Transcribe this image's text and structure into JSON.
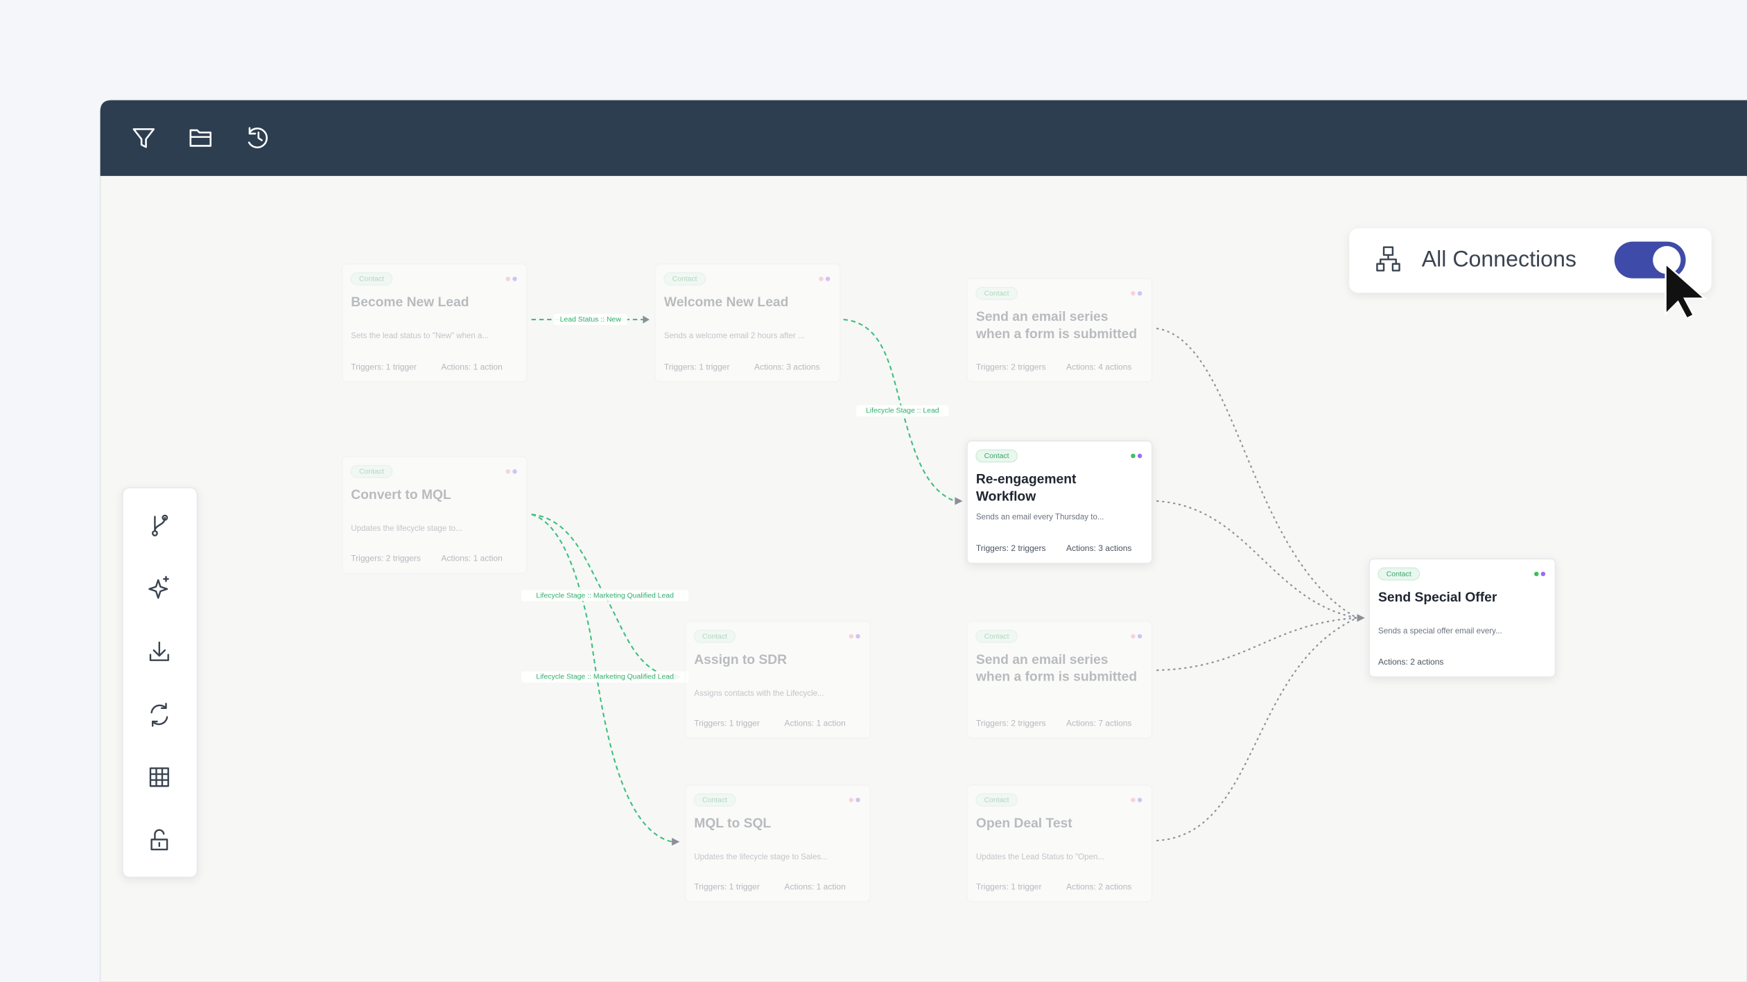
{
  "toggle": {
    "label": "All Connections",
    "enabled": true
  },
  "connections": [
    {
      "label": "Lead Status :: New"
    },
    {
      "label": "Lifecycle Stage :: Lead"
    },
    {
      "label": "Lifecycle Stage :: Marketing Qualified Lead"
    },
    {
      "label": "Lifecycle Stage :: Marketing Qualified Lead"
    }
  ],
  "cards": [
    {
      "tag": "Contact",
      "title_lines": [
        "Become New Lead"
      ],
      "description": "Sets the lead status to \"New\" when a...",
      "triggers": "Triggers: 1 trigger",
      "actions": "Actions: 1 action",
      "faded": true
    },
    {
      "tag": "Contact",
      "title_lines": [
        "Welcome New Lead"
      ],
      "description": "Sends a welcome email 2 hours after ...",
      "triggers": "Triggers: 1 trigger",
      "actions": "Actions: 3 actions",
      "faded": true
    },
    {
      "tag": "Contact",
      "title_lines": [
        "Send an email series",
        "when a form is submitted"
      ],
      "triggers": "Triggers: 2 triggers",
      "actions": "Actions: 4 actions",
      "faded": true
    },
    {
      "tag": "Contact",
      "title_lines": [
        "Convert to MQL"
      ],
      "description": "Updates the lifecycle stage to...",
      "triggers": "Triggers: 2 triggers",
      "actions": "Actions: 1 action",
      "faded": true
    },
    {
      "tag": "Contact",
      "title_lines": [
        "Re-engagement",
        "Workflow"
      ],
      "description": "Sends an email every Thursday to...",
      "triggers": "Triggers: 2 triggers",
      "actions": "Actions: 3 actions",
      "faded": false
    },
    {
      "tag": "Contact",
      "title_lines": [
        "Assign to SDR"
      ],
      "description": "Assigns contacts with the Lifecycle...",
      "triggers": "Triggers: 1 trigger",
      "actions": "Actions: 1 action",
      "faded": true
    },
    {
      "tag": "Contact",
      "title_lines": [
        "Send an email series",
        "when a form is submitted"
      ],
      "triggers": "Triggers: 2 triggers",
      "actions": "Actions: 7 actions",
      "faded": true
    },
    {
      "tag": "Contact",
      "title_lines": [
        "MQL to SQL"
      ],
      "description": "Updates the lifecycle stage to Sales...",
      "triggers": "Triggers: 1 trigger",
      "actions": "Actions: 1 action",
      "faded": true
    },
    {
      "tag": "Contact",
      "title_lines": [
        "Open Deal Test"
      ],
      "description": "Updates the Lead Status to \"Open...",
      "triggers": "Triggers: 1 trigger",
      "actions": "Actions: 2 actions",
      "faded": true
    },
    {
      "tag": "Contact",
      "title_lines": [
        "Send Special Offer"
      ],
      "description": "Sends a special offer email every...",
      "actions": "Actions: 2 actions",
      "faded": false
    }
  ]
}
